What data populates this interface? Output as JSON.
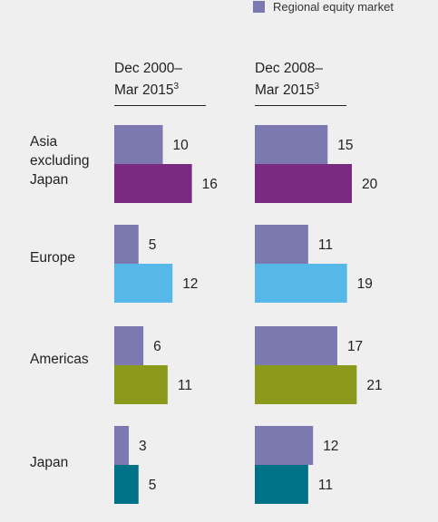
{
  "legend": {
    "label": "Regional equity market",
    "color": "#7b79b0"
  },
  "columns": [
    {
      "label_line1": "Dec 2000–",
      "label_line2": "Mar 2015",
      "footnote": "3"
    },
    {
      "label_line1": "Dec 2008–",
      "label_line2": "Mar 2015",
      "footnote": "3"
    }
  ],
  "chart_data": {
    "type": "bar",
    "orientation": "horizontal",
    "categories": [
      "Asia excluding Japan",
      "Europe",
      "Americas",
      "Japan"
    ],
    "panels": [
      {
        "period": "Dec 2000–Mar 2015",
        "series": [
          {
            "name": "Regional equity market",
            "values": [
              10,
              5,
              6,
              3
            ]
          },
          {
            "name": "",
            "values": [
              16,
              12,
              11,
              5
            ]
          }
        ]
      },
      {
        "period": "Dec 2008–Mar 2015",
        "series": [
          {
            "name": "Regional equity market",
            "values": [
              15,
              11,
              17,
              12
            ]
          },
          {
            "name": "",
            "values": [
              20,
              19,
              21,
              11
            ]
          }
        ]
      }
    ],
    "colors": {
      "benchmark": "#7b79b0",
      "regions": [
        "#7b2a82",
        "#55b8e8",
        "#8b9a1a",
        "#007288"
      ]
    },
    "legend_position": "top-right",
    "grid": false
  },
  "regions": [
    {
      "line1": "Asia",
      "line2": "excluding",
      "line3": "Japan"
    },
    {
      "line1": "Europe"
    },
    {
      "line1": "Americas"
    },
    {
      "line1": "Japan"
    }
  ]
}
